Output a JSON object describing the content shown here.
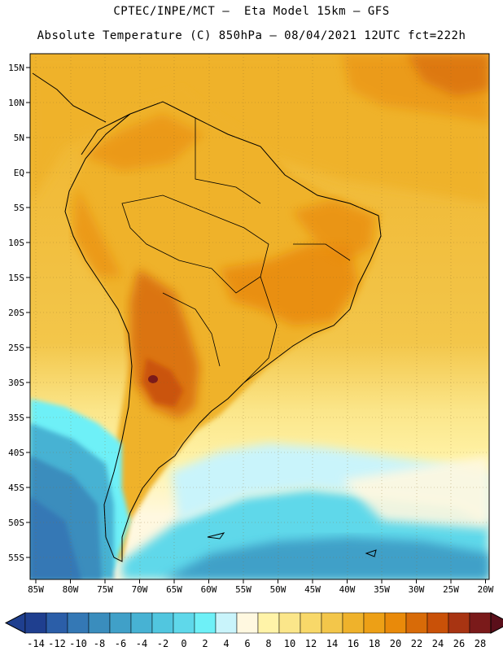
{
  "header": {
    "title_line1": "CPTEC/INPE/MCT –  Eta Model 15km – GFS",
    "title_line2": "Absolute Temperature (C) 850hPa – 08/04/2021 12UTC fct=222h"
  },
  "map": {
    "lon_ticks": [
      "85W",
      "80W",
      "75W",
      "70W",
      "65W",
      "60W",
      "55W",
      "50W",
      "45W",
      "40W",
      "35W",
      "30W",
      "25W",
      "20W"
    ],
    "lat_ticks": [
      "15N",
      "10N",
      "5N",
      "EQ",
      "5S",
      "10S",
      "15S",
      "20S",
      "25S",
      "30S",
      "35S",
      "40S",
      "45S",
      "50S",
      "55S"
    ]
  },
  "colorbar": {
    "labels": [
      "-14",
      "-12",
      "-10",
      "-8",
      "-6",
      "-4",
      "-2",
      "0",
      "2",
      "4",
      "6",
      "8",
      "10",
      "12",
      "14",
      "16",
      "18",
      "20",
      "22",
      "24",
      "26",
      "28"
    ],
    "colors": [
      "#1f3f8f",
      "#2b5ea8",
      "#3478b5",
      "#3a8dbd",
      "#40a0c8",
      "#47b2d3",
      "#51c6df",
      "#5fd8ea",
      "#6ef0f7",
      "#c9f4fb",
      "#fff8e0",
      "#fff3a8",
      "#fbe68a",
      "#f8d869",
      "#f3c64a",
      "#efb22b",
      "#eda016",
      "#e98a0a",
      "#d86b08",
      "#c95108",
      "#a83412",
      "#7a1a1a"
    ]
  }
}
